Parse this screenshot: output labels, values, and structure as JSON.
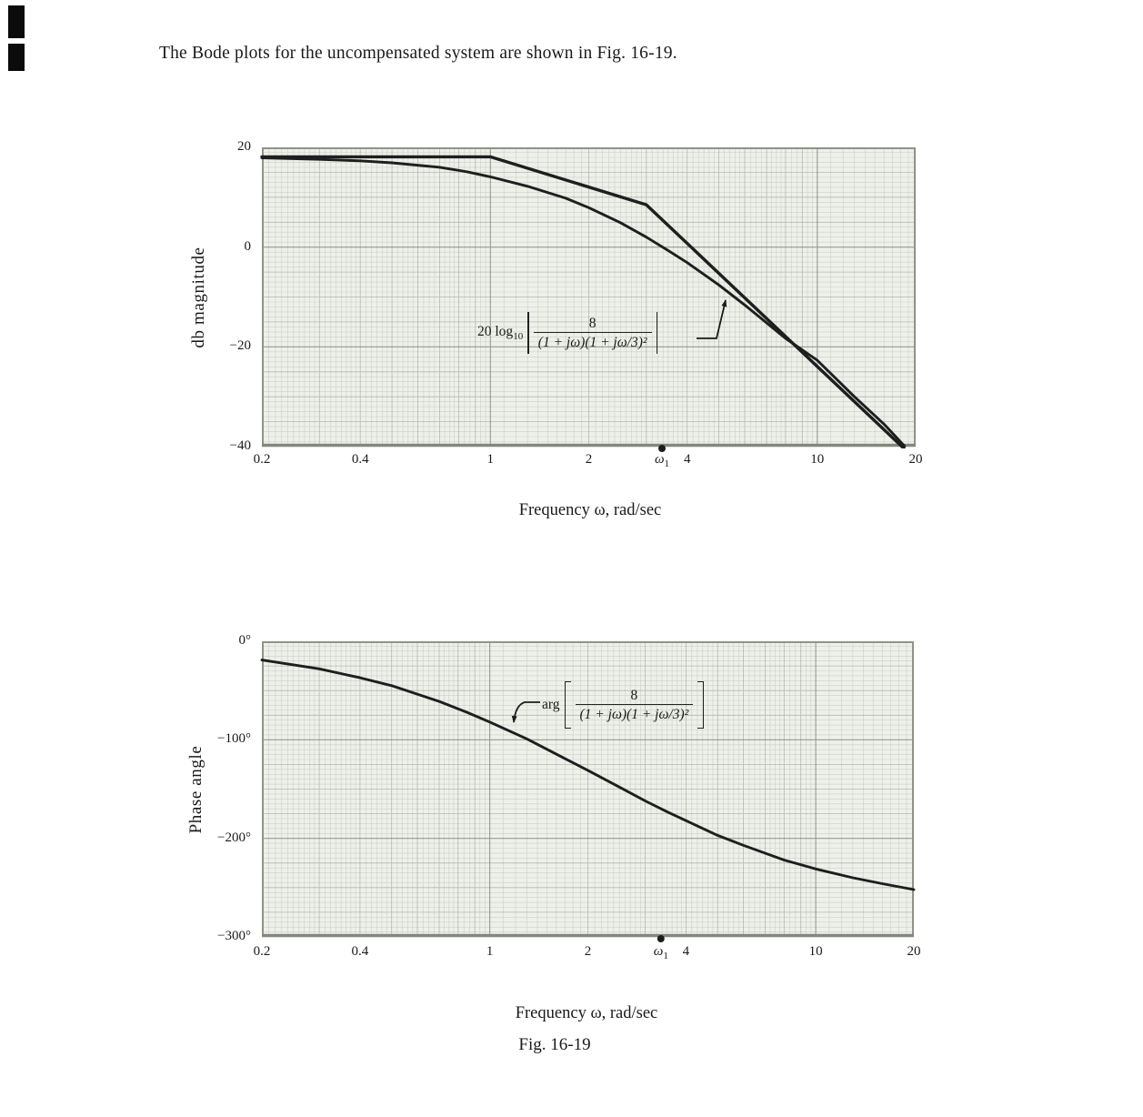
{
  "page": {
    "heading": "The Bode plots for the uncompensated system are shown in Fig. 16-19.",
    "figure_caption": "Fig. 16-19"
  },
  "chart_data": [
    {
      "type": "line",
      "name": "bode-magnitude-plot",
      "xscale": "log",
      "xlabel": "Frequency ω, rad/sec",
      "ylabel": "db magnitude",
      "xlim": [
        0.2,
        20
      ],
      "ylim": [
        -40,
        20
      ],
      "grid": true,
      "yticks": [
        {
          "v": 20,
          "label": "20"
        },
        {
          "v": 0,
          "label": "0"
        },
        {
          "v": -20,
          "label": "−20"
        },
        {
          "v": -40,
          "label": "−40"
        }
      ],
      "xticks": [
        {
          "v": 0.2,
          "label": "0.2"
        },
        {
          "v": 0.4,
          "label": "0.4"
        },
        {
          "v": 1,
          "label": "1"
        },
        {
          "v": 2,
          "label": "2"
        },
        {
          "v": 3.35,
          "label": "ω",
          "sub": "1"
        },
        {
          "v": 4,
          "label": "4"
        },
        {
          "v": 10,
          "label": "10"
        },
        {
          "v": 20,
          "label": "20"
        }
      ],
      "omega1_marker": 3.35,
      "annotation": {
        "prefix": "20 log",
        "prefix_sub": "10",
        "numerator": "8",
        "denominator": "(1 + jω)(1 + jω/3)²"
      },
      "series": [
        {
          "name": "straight-line asymptotic approximation (corners at ω=1 and ω=3)",
          "points": [
            [
              0.2,
              18.1
            ],
            [
              1,
              18.1
            ],
            [
              3,
              8.5
            ],
            [
              18.5,
              -40.5
            ]
          ]
        },
        {
          "name": "20 log10 |8/((1+jω)(1+jω/3)²)|",
          "points": [
            [
              0.2,
              17.9
            ],
            [
              0.3,
              17.6
            ],
            [
              0.4,
              17.3
            ],
            [
              0.5,
              16.9
            ],
            [
              0.7,
              16.0
            ],
            [
              0.85,
              15.1
            ],
            [
              1,
              14.1
            ],
            [
              1.3,
              12.2
            ],
            [
              1.7,
              9.8
            ],
            [
              2,
              7.9
            ],
            [
              2.5,
              4.9
            ],
            [
              3,
              2.0
            ],
            [
              3.5,
              -0.7
            ],
            [
              4,
              -3.1
            ],
            [
              5,
              -7.6
            ],
            [
              6,
              -11.6
            ],
            [
              8,
              -18.3
            ],
            [
              10,
              -22.7
            ],
            [
              13,
              -30.0
            ],
            [
              16,
              -35.5
            ],
            [
              18.5,
              -39.9
            ]
          ]
        }
      ]
    },
    {
      "type": "line",
      "name": "bode-phase-plot",
      "xscale": "log",
      "xlabel": "Frequency ω, rad/sec",
      "ylabel": "Phase angle",
      "xlim": [
        0.2,
        20
      ],
      "ylim": [
        -300,
        0
      ],
      "grid": true,
      "yticks": [
        {
          "v": 0,
          "label": "0°"
        },
        {
          "v": -100,
          "label": "−100°"
        },
        {
          "v": -200,
          "label": "−200°"
        },
        {
          "v": -300,
          "label": "−300°"
        }
      ],
      "xticks": [
        {
          "v": 0.2,
          "label": "0.2"
        },
        {
          "v": 0.4,
          "label": "0.4"
        },
        {
          "v": 1,
          "label": "1"
        },
        {
          "v": 2,
          "label": "2"
        },
        {
          "v": 3.35,
          "label": "ω",
          "sub": "1"
        },
        {
          "v": 4,
          "label": "4"
        },
        {
          "v": 10,
          "label": "10"
        },
        {
          "v": 20,
          "label": "20"
        }
      ],
      "omega1_marker": 3.35,
      "annotation": {
        "prefix": "arg",
        "numerator": "8",
        "denominator": "(1 + jω)(1 + jω/3)²"
      },
      "series": [
        {
          "name": "arg[8/((1+jω)(1+jω/3)²)]",
          "points": [
            [
              0.2,
              -19
            ],
            [
              0.3,
              -28
            ],
            [
              0.4,
              -37
            ],
            [
              0.5,
              -45
            ],
            [
              0.7,
              -61
            ],
            [
              0.85,
              -72
            ],
            [
              1,
              -82
            ],
            [
              1.3,
              -99
            ],
            [
              1.7,
              -119
            ],
            [
              2,
              -131
            ],
            [
              2.5,
              -148
            ],
            [
              3,
              -162
            ],
            [
              3.5,
              -173
            ],
            [
              4,
              -182
            ],
            [
              5,
              -197
            ],
            [
              6,
              -207
            ],
            [
              8,
              -222
            ],
            [
              10,
              -231
            ],
            [
              13,
              -240
            ],
            [
              16,
              -246
            ],
            [
              20,
              -252
            ]
          ]
        }
      ]
    }
  ]
}
